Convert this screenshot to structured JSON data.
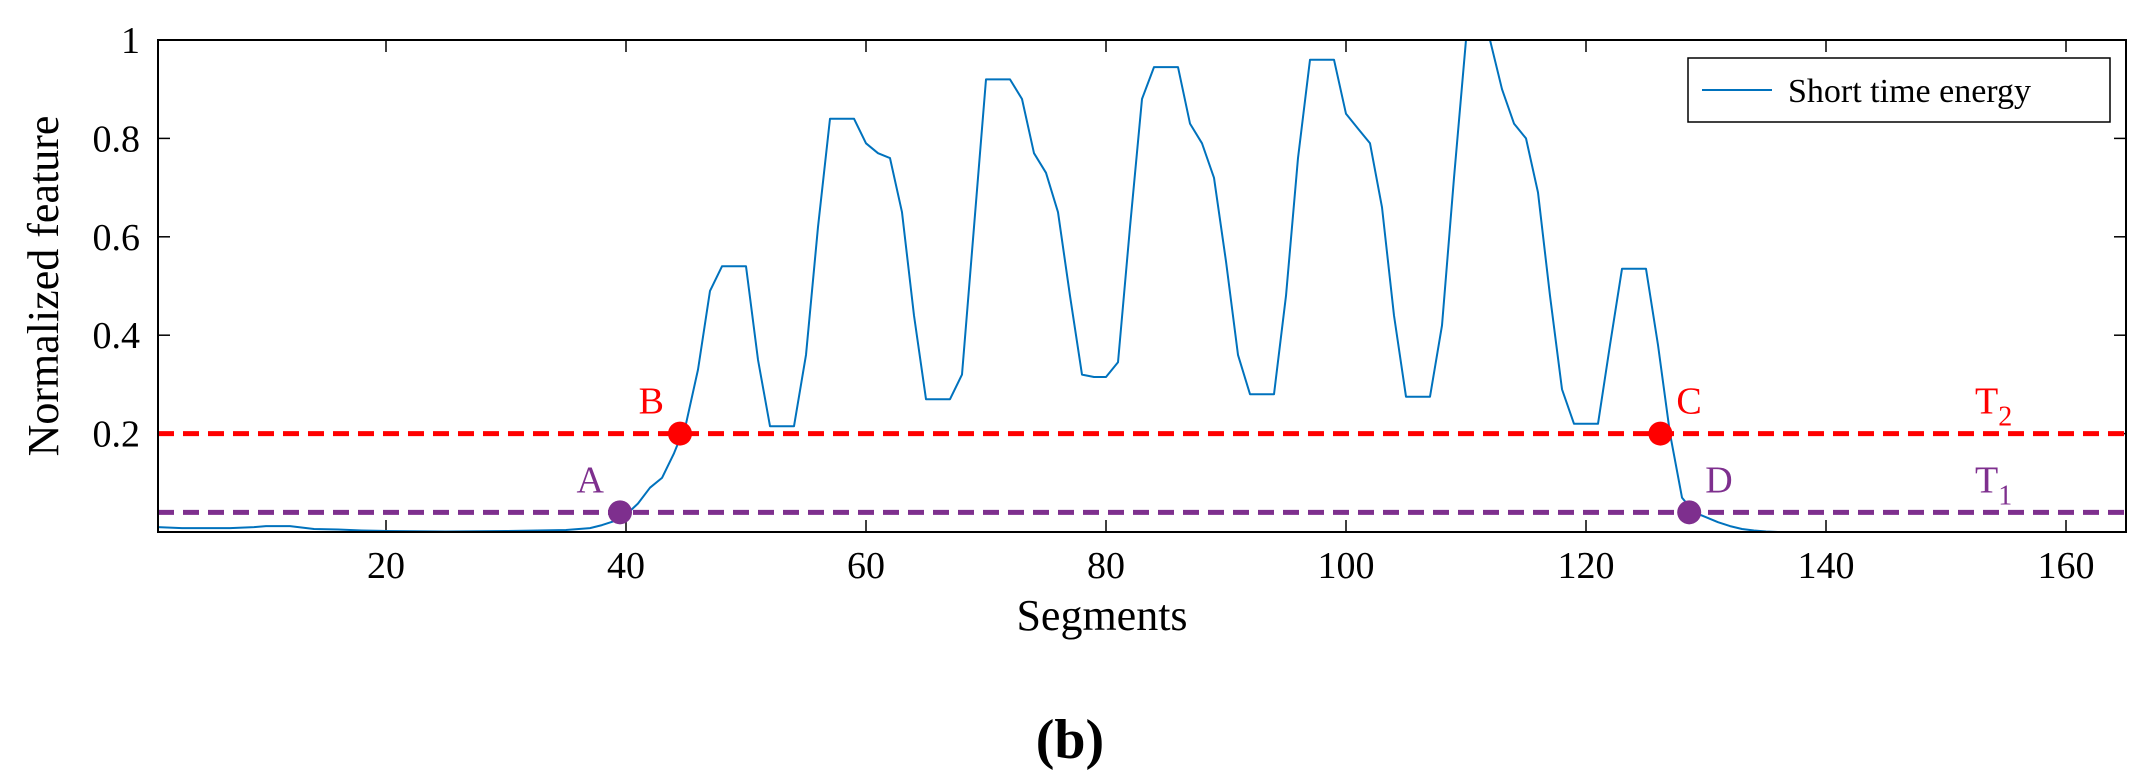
{
  "chart_data": {
    "type": "line",
    "panel_label": "(b)",
    "xlabel": "Segments",
    "ylabel": "Normalized feature",
    "xlim": [
      1,
      165
    ],
    "ylim": [
      0,
      1
    ],
    "xticks": [
      20,
      40,
      60,
      80,
      100,
      120,
      140,
      160
    ],
    "yticks": [
      0.2,
      0.4,
      0.6,
      0.8,
      1
    ],
    "ytick_labels": [
      "0.2",
      "0.4",
      "0.6",
      "0.8",
      "1"
    ],
    "legend": {
      "label": "Short time energy",
      "position": "top-right"
    },
    "series": [
      {
        "name": "Short time energy",
        "color": "#0072BD",
        "x": [
          1,
          3,
          5,
          7,
          9,
          10,
          12,
          14,
          16,
          18,
          20,
          25,
          30,
          35,
          37,
          38,
          39,
          40,
          41,
          42,
          43,
          44,
          45,
          46,
          47,
          48,
          49,
          50,
          51,
          52,
          53,
          54,
          55,
          56,
          57,
          58,
          59,
          60,
          61,
          62,
          63,
          64,
          65,
          66,
          67,
          68,
          69,
          70,
          71,
          72,
          73,
          74,
          75,
          76,
          77,
          78,
          79,
          80,
          81,
          82,
          83,
          84,
          85,
          86,
          87,
          88,
          89,
          90,
          91,
          92,
          93,
          94,
          95,
          96,
          97,
          98,
          99,
          100,
          101,
          102,
          103,
          104,
          105,
          106,
          107,
          108,
          109,
          110,
          111,
          112,
          113,
          114,
          115,
          116,
          117,
          118,
          119,
          120,
          121,
          122,
          123,
          124,
          125,
          126,
          127,
          128,
          129,
          130,
          131,
          132,
          133,
          134,
          135,
          136,
          165
        ],
        "values": [
          0.01,
          0.008,
          0.008,
          0.008,
          0.01,
          0.012,
          0.012,
          0.006,
          0.005,
          0.003,
          0.002,
          0.001,
          0.002,
          0.004,
          0.008,
          0.014,
          0.022,
          0.035,
          0.058,
          0.09,
          0.11,
          0.16,
          0.22,
          0.33,
          0.49,
          0.54,
          0.54,
          0.54,
          0.35,
          0.215,
          0.215,
          0.215,
          0.36,
          0.62,
          0.84,
          0.84,
          0.84,
          0.79,
          0.77,
          0.76,
          0.65,
          0.44,
          0.27,
          0.27,
          0.27,
          0.32,
          0.62,
          0.92,
          0.92,
          0.92,
          0.88,
          0.77,
          0.73,
          0.65,
          0.48,
          0.32,
          0.315,
          0.315,
          0.345,
          0.62,
          0.88,
          0.945,
          0.945,
          0.945,
          0.83,
          0.79,
          0.72,
          0.55,
          0.36,
          0.28,
          0.28,
          0.28,
          0.48,
          0.76,
          0.96,
          0.96,
          0.96,
          0.85,
          0.82,
          0.79,
          0.66,
          0.44,
          0.275,
          0.275,
          0.275,
          0.42,
          0.72,
          1.0,
          1.0,
          1.0,
          0.9,
          0.83,
          0.8,
          0.69,
          0.48,
          0.29,
          0.22,
          0.22,
          0.22,
          0.38,
          0.535,
          0.535,
          0.535,
          0.38,
          0.2,
          0.07,
          0.04,
          0.03,
          0.02,
          0.012,
          0.006,
          0.003,
          0.001,
          0.0,
          0.0
        ]
      }
    ],
    "thresholds": [
      {
        "name": "T2",
        "label": "T",
        "sub": "2",
        "y": 0.2,
        "color": "#FF0000"
      },
      {
        "name": "T1",
        "label": "T",
        "sub": "1",
        "y": 0.04,
        "color": "#7E2F8E"
      }
    ],
    "points": [
      {
        "label": "A",
        "x": 39.5,
        "y": 0.04,
        "color": "#7E2F8E",
        "label_side": "left"
      },
      {
        "label": "B",
        "x": 44.5,
        "y": 0.2,
        "color": "#FF0000",
        "label_side": "left"
      },
      {
        "label": "C",
        "x": 126.2,
        "y": 0.2,
        "color": "#FF0000",
        "label_side": "right"
      },
      {
        "label": "D",
        "x": 128.6,
        "y": 0.04,
        "color": "#7E2F8E",
        "label_side": "right"
      }
    ]
  }
}
